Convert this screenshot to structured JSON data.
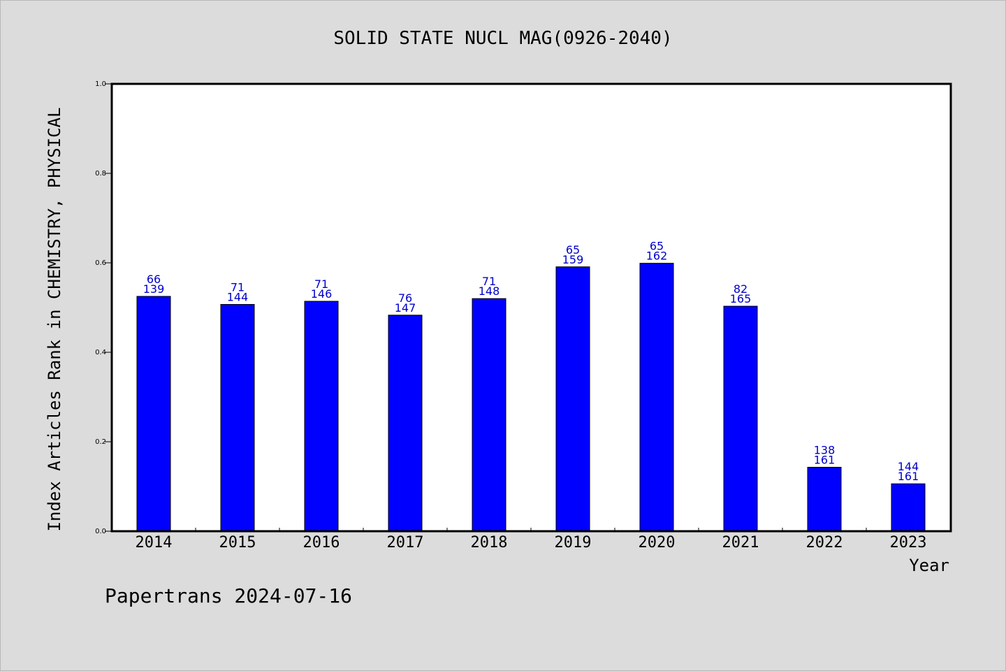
{
  "chart_data": {
    "type": "bar",
    "title": "SOLID STATE NUCL MAG(0926-2040)",
    "xlabel": "Year",
    "ylabel": "Index Articles Rank in CHEMISTRY, PHYSICAL",
    "ylim": [
      0,
      1.0
    ],
    "yticks": [
      "0.0",
      "0.2",
      "0.4",
      "0.6",
      "0.8",
      "1.0"
    ],
    "grid": false,
    "categories": [
      "2014",
      "2015",
      "2016",
      "2017",
      "2018",
      "2019",
      "2020",
      "2021",
      "2022",
      "2023"
    ],
    "values": [
      0.525,
      0.507,
      0.514,
      0.483,
      0.52,
      0.591,
      0.599,
      0.503,
      0.143,
      0.106
    ],
    "rank": [
      "66",
      "71",
      "71",
      "76",
      "71",
      "65",
      "65",
      "82",
      "138",
      "144"
    ],
    "total": [
      "139",
      "144",
      "146",
      "147",
      "148",
      "159",
      "162",
      "165",
      "161",
      "161"
    ],
    "bar_color": "#0000ff",
    "label_color": "#0000cc"
  },
  "footer": "Papertrans 2024-07-16"
}
